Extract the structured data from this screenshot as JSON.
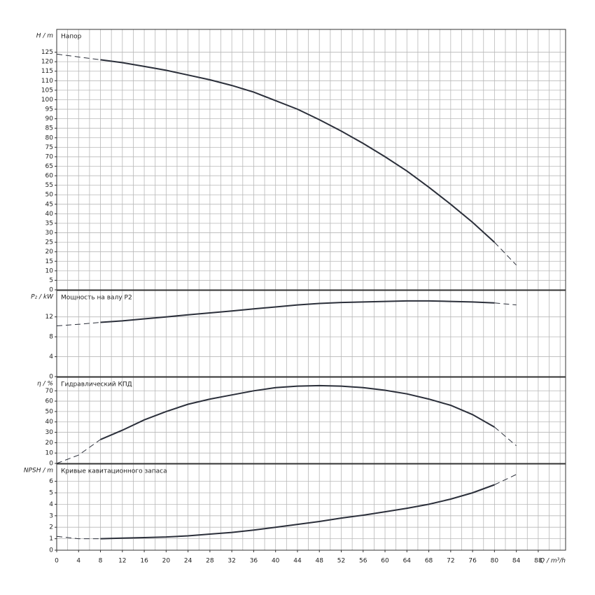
{
  "chart_data": [
    {
      "type": "line",
      "title": "Напор",
      "y_label": "H / m",
      "x": [
        0,
        4,
        8,
        12,
        16,
        20,
        24,
        28,
        32,
        36,
        40,
        44,
        48,
        52,
        56,
        60,
        64,
        68,
        72,
        76,
        80,
        84
      ],
      "series": [
        {
          "color": "#2b2f3a",
          "dash": true,
          "values": [
            124,
            122.5,
            121,
            null,
            null,
            null,
            null,
            null,
            null,
            null,
            null,
            null,
            null,
            null,
            null,
            null,
            null,
            null,
            null,
            null,
            null,
            null
          ]
        },
        {
          "color": "#2b2f3a",
          "dash": false,
          "values": [
            null,
            null,
            121,
            119.5,
            117.5,
            115.5,
            113,
            110.5,
            107.5,
            104,
            99.5,
            95,
            89.5,
            83.5,
            77,
            70,
            62.5,
            54,
            45,
            35.5,
            25,
            null
          ]
        },
        {
          "color": "#2b2f3a",
          "dash": true,
          "values": [
            null,
            null,
            null,
            null,
            null,
            null,
            null,
            null,
            null,
            null,
            null,
            null,
            null,
            null,
            null,
            null,
            null,
            null,
            null,
            null,
            25,
            13
          ]
        }
      ],
      "ylim": [
        0,
        137
      ],
      "yticks": [
        0,
        5,
        10,
        15,
        20,
        25,
        30,
        35,
        40,
        45,
        50,
        55,
        60,
        65,
        70,
        75,
        80,
        85,
        90,
        95,
        100,
        105,
        110,
        115,
        120,
        125
      ],
      "grid": true
    },
    {
      "type": "line",
      "title": "Мощность на валу P2",
      "y_label": "P₂ / kW",
      "x": [
        0,
        4,
        8,
        12,
        16,
        20,
        24,
        28,
        32,
        36,
        40,
        44,
        48,
        52,
        56,
        60,
        64,
        68,
        72,
        76,
        80,
        84
      ],
      "series": [
        {
          "color": "#2b2f3a",
          "dash": true,
          "values": [
            10.2,
            10.5,
            10.9,
            null,
            null,
            null,
            null,
            null,
            null,
            null,
            null,
            null,
            null,
            null,
            null,
            null,
            null,
            null,
            null,
            null,
            null,
            null
          ]
        },
        {
          "color": "#2b2f3a",
          "dash": false,
          "values": [
            null,
            null,
            10.9,
            11.2,
            11.6,
            12.0,
            12.4,
            12.8,
            13.2,
            13.6,
            14.0,
            14.4,
            14.7,
            14.9,
            15.0,
            15.1,
            15.2,
            15.2,
            15.1,
            15.0,
            14.8,
            null
          ]
        },
        {
          "color": "#2b2f3a",
          "dash": true,
          "values": [
            null,
            null,
            null,
            null,
            null,
            null,
            null,
            null,
            null,
            null,
            null,
            null,
            null,
            null,
            null,
            null,
            null,
            null,
            null,
            null,
            14.8,
            14.4
          ]
        }
      ],
      "ylim": [
        0,
        17.3
      ],
      "yticks": [
        0,
        4,
        8,
        12
      ],
      "grid": true
    },
    {
      "type": "line",
      "title": "Гидравлический КПД",
      "y_label": "η / %",
      "x": [
        0,
        4,
        8,
        12,
        16,
        20,
        24,
        28,
        32,
        36,
        40,
        44,
        48,
        52,
        56,
        60,
        64,
        68,
        72,
        76,
        80,
        84
      ],
      "series": [
        {
          "color": "#2b2f3a",
          "dash": true,
          "values": [
            0,
            8,
            23,
            null,
            null,
            null,
            null,
            null,
            null,
            null,
            null,
            null,
            null,
            null,
            null,
            null,
            null,
            null,
            null,
            null,
            null,
            null
          ]
        },
        {
          "color": "#2b2f3a",
          "dash": false,
          "values": [
            null,
            null,
            23,
            32,
            42,
            50,
            57,
            62,
            66,
            70,
            73,
            74.5,
            75,
            74.5,
            73,
            70.5,
            67,
            62,
            56,
            47,
            35,
            null
          ]
        },
        {
          "color": "#2b2f3a",
          "dash": true,
          "values": [
            null,
            null,
            null,
            null,
            null,
            null,
            null,
            null,
            null,
            null,
            null,
            null,
            null,
            null,
            null,
            null,
            null,
            null,
            null,
            null,
            35,
            17
          ]
        }
      ],
      "ylim": [
        0,
        83
      ],
      "yticks": [
        0,
        10,
        20,
        30,
        40,
        50,
        60,
        70
      ],
      "grid": true
    },
    {
      "type": "line",
      "title": "Кривые кавитационного запаса",
      "y_label": "NPSH / m",
      "x_label": "Q / m³/h",
      "x": [
        0,
        4,
        8,
        12,
        16,
        20,
        24,
        28,
        32,
        36,
        40,
        44,
        48,
        52,
        56,
        60,
        64,
        68,
        72,
        76,
        80,
        84
      ],
      "series": [
        {
          "color": "#2b2f3a",
          "dash": true,
          "values": [
            1.2,
            1.0,
            1.0,
            null,
            null,
            null,
            null,
            null,
            null,
            null,
            null,
            null,
            null,
            null,
            null,
            null,
            null,
            null,
            null,
            null,
            null,
            null
          ]
        },
        {
          "color": "#2b2f3a",
          "dash": false,
          "values": [
            null,
            null,
            1.0,
            1.05,
            1.1,
            1.15,
            1.25,
            1.4,
            1.55,
            1.75,
            2.0,
            2.25,
            2.5,
            2.8,
            3.05,
            3.35,
            3.65,
            4.0,
            4.45,
            5.0,
            5.7,
            null
          ]
        },
        {
          "color": "#2b2f3a",
          "dash": true,
          "values": [
            null,
            null,
            null,
            null,
            null,
            null,
            null,
            null,
            null,
            null,
            null,
            null,
            null,
            null,
            null,
            null,
            null,
            null,
            null,
            null,
            5.7,
            6.6
          ]
        }
      ],
      "ylim": [
        0,
        7.5
      ],
      "yticks": [
        0,
        1,
        2,
        3,
        4,
        5,
        6
      ],
      "grid": true,
      "xlim": [
        0,
        93
      ],
      "xticks": [
        0,
        4,
        8,
        12,
        16,
        20,
        24,
        28,
        32,
        36,
        40,
        44,
        48,
        52,
        56,
        60,
        64,
        68,
        72,
        76,
        80,
        84,
        88
      ],
      "minor_xticks": [
        2,
        6,
        10,
        14,
        18,
        22,
        26,
        30,
        34,
        38,
        42,
        46,
        50,
        54,
        58,
        62,
        66,
        70,
        74,
        78,
        82,
        86,
        90,
        92
      ]
    }
  ]
}
